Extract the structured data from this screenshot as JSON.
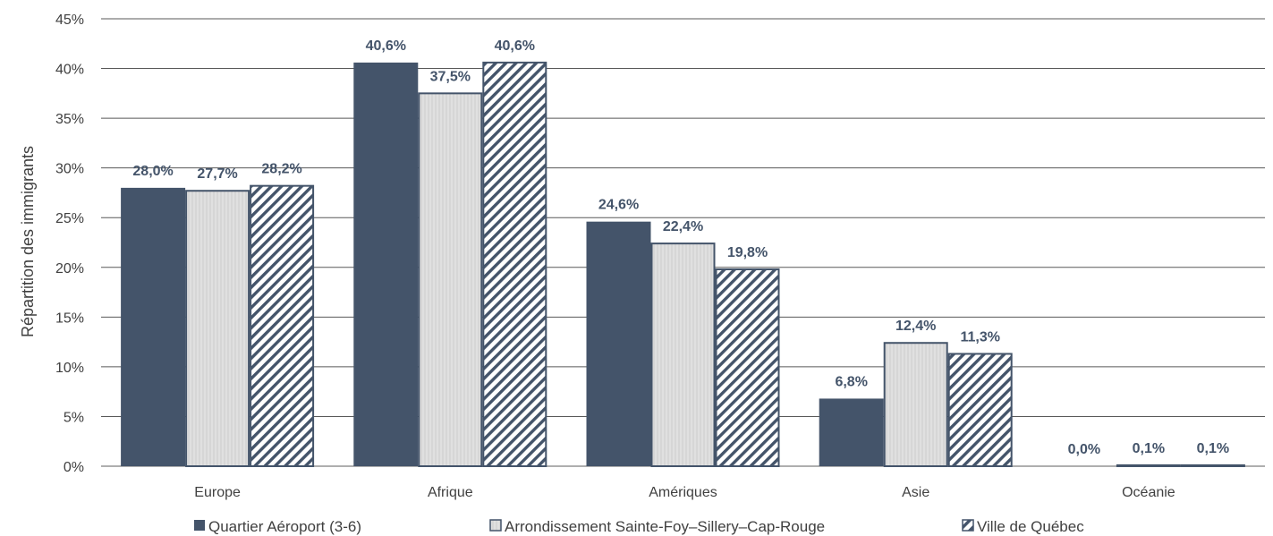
{
  "chart_data": {
    "type": "bar",
    "ylabel": "Répartition des immigrants",
    "ylim": [
      0,
      45
    ],
    "yticks": [
      "0%",
      "5%",
      "10%",
      "15%",
      "20%",
      "25%",
      "30%",
      "35%",
      "40%",
      "45%"
    ],
    "categories": [
      "Europe",
      "Afrique",
      "Amériques",
      "Asie",
      "Océanie"
    ],
    "series": [
      {
        "name": "Quartier Aéroport (3-6)",
        "values": [
          28.0,
          40.6,
          24.6,
          6.8,
          0.0
        ],
        "labels": [
          "28,0%",
          "40,6%",
          "24,6%",
          "6,8%",
          "0,0%"
        ],
        "style": "solid",
        "color": "#44546A"
      },
      {
        "name": "Arrondissement Sainte-Foy–Sillery–Cap-Rouge",
        "values": [
          27.7,
          37.5,
          22.4,
          12.4,
          0.1
        ],
        "labels": [
          "27,7%",
          "37,5%",
          "22,4%",
          "12,4%",
          "0,1%"
        ],
        "style": "light",
        "color": "#D9D9D9"
      },
      {
        "name": "Ville de Québec",
        "values": [
          28.2,
          40.6,
          19.8,
          11.3,
          0.1
        ],
        "labels": [
          "28,2%",
          "40,6%",
          "19,8%",
          "11,3%",
          "0,1%"
        ],
        "style": "hatched",
        "color": "#44546A"
      }
    ],
    "grid": true,
    "legend_position": "bottom"
  }
}
